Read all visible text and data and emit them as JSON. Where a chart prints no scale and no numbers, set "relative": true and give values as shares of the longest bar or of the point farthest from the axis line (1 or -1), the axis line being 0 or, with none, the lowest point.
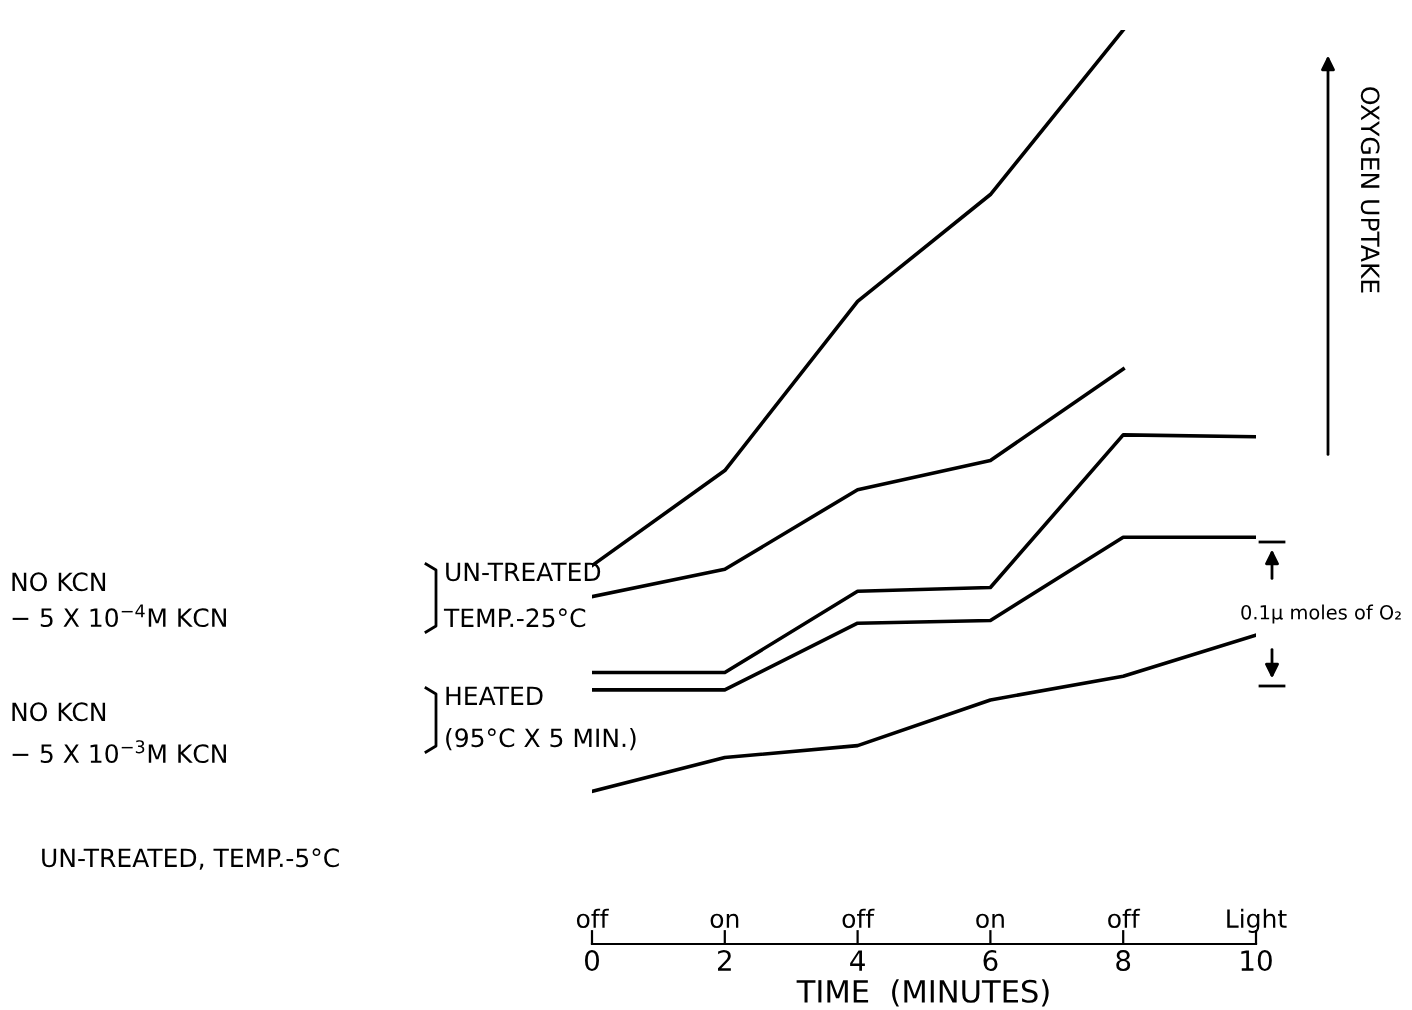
{
  "chart_data": {
    "type": "line",
    "relative": true,
    "x": [
      0,
      2,
      4,
      6,
      8,
      10
    ],
    "xlim": [
      0,
      10
    ],
    "xticks": [
      0,
      2,
      4,
      6,
      8,
      10
    ],
    "xlabel": "TIME  (MINUTES)",
    "series": [
      {
        "color": "#000000",
        "values": [
          0.414,
          0.518,
          0.703,
          0.82,
          1.0,
          null
        ]
      },
      {
        "color": "#000000",
        "values": [
          0.38,
          0.41,
          0.497,
          0.529,
          0.629,
          null
        ]
      },
      {
        "color": "#000000",
        "values": [
          0.297,
          0.297,
          0.386,
          0.39,
          0.557,
          0.555
        ]
      },
      {
        "color": "#000000",
        "values": [
          0.278,
          0.278,
          0.351,
          0.354,
          0.445,
          0.445
        ]
      },
      {
        "color": "#000000",
        "values": [
          0.167,
          0.204,
          0.217,
          0.267,
          0.293,
          0.338
        ]
      }
    ],
    "annotations": [
      "NO KCN",
      "− 5 X 10$^{−4}$M KCN",
      "UN-TREATED",
      "TEMP.-25°C",
      "NO KCN",
      "− 5 X 10$^{−3}$M KCN",
      "HEATED",
      "(95°C X 5 MIN.)",
      "UN-TREATED, TEMP.-5°C",
      "OXYGEN UPTAKE",
      "0.1μ moles of O₂",
      "off",
      "on",
      "off",
      "on",
      "off",
      "Light"
    ],
    "grid": false,
    "marker": "none",
    "line_style": "solid"
  }
}
